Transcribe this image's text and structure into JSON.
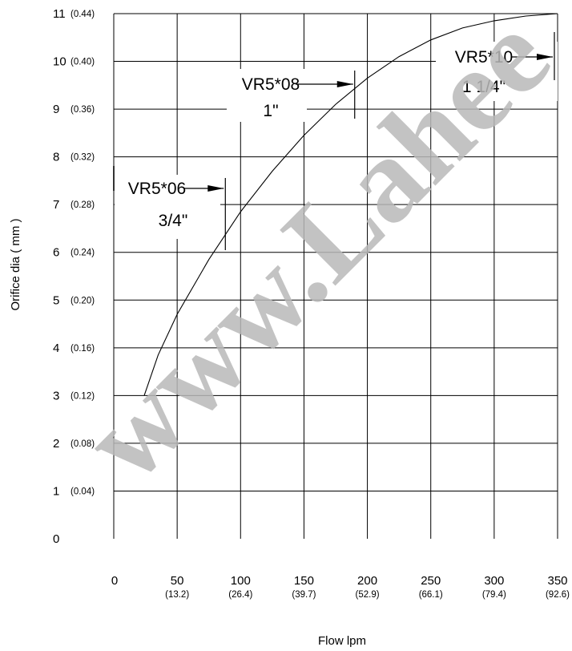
{
  "watermark": "www.Lahee",
  "chart_data": {
    "type": "line",
    "title": "",
    "xlabel": "Flow  lpm",
    "ylabel": "Orifice dia ( mm )",
    "xlim": [
      0,
      350
    ],
    "ylim": [
      0,
      11
    ],
    "grid": true,
    "x_ticks": [
      {
        "major": "0",
        "minor": ""
      },
      {
        "major": "50",
        "minor": "(13.2)"
      },
      {
        "major": "100",
        "minor": "(26.4)"
      },
      {
        "major": "150",
        "minor": "(39.7)"
      },
      {
        "major": "200",
        "minor": "(52.9)"
      },
      {
        "major": "250",
        "minor": "(66.1)"
      },
      {
        "major": "300",
        "minor": "(79.4)"
      },
      {
        "major": "350",
        "minor": "(92.6)"
      }
    ],
    "y_ticks": [
      {
        "major": "0",
        "minor": ""
      },
      {
        "major": "1",
        "minor": "(0.04)"
      },
      {
        "major": "2",
        "minor": "(0.08)"
      },
      {
        "major": "3",
        "minor": "(0.12)"
      },
      {
        "major": "4",
        "minor": "(0.16)"
      },
      {
        "major": "5",
        "minor": "(0.20)"
      },
      {
        "major": "6",
        "minor": "(0.24)"
      },
      {
        "major": "7",
        "minor": "(0.28)"
      },
      {
        "major": "8",
        "minor": "(0.32)"
      },
      {
        "major": "9",
        "minor": "(0.36)"
      },
      {
        "major": "10",
        "minor": "(0.40)"
      },
      {
        "major": "11",
        "minor": "(0.44)"
      }
    ],
    "series": [
      {
        "x": [
          24,
          35,
          50,
          75,
          100,
          125,
          150,
          175,
          200,
          225,
          250,
          275,
          300,
          325,
          350
        ],
        "y": [
          3.0,
          3.85,
          4.7,
          5.85,
          6.85,
          7.7,
          8.45,
          9.1,
          9.65,
          10.1,
          10.45,
          10.7,
          10.85,
          10.95,
          11.0
        ]
      }
    ],
    "annotations": [
      {
        "model": "VR5*06",
        "size": "3/4\"",
        "x": 88
      },
      {
        "model": "VR5*08",
        "size": "1\"",
        "x": 190
      },
      {
        "model": "VR5*10",
        "size": "1 1/4\"",
        "x": 350
      }
    ]
  }
}
